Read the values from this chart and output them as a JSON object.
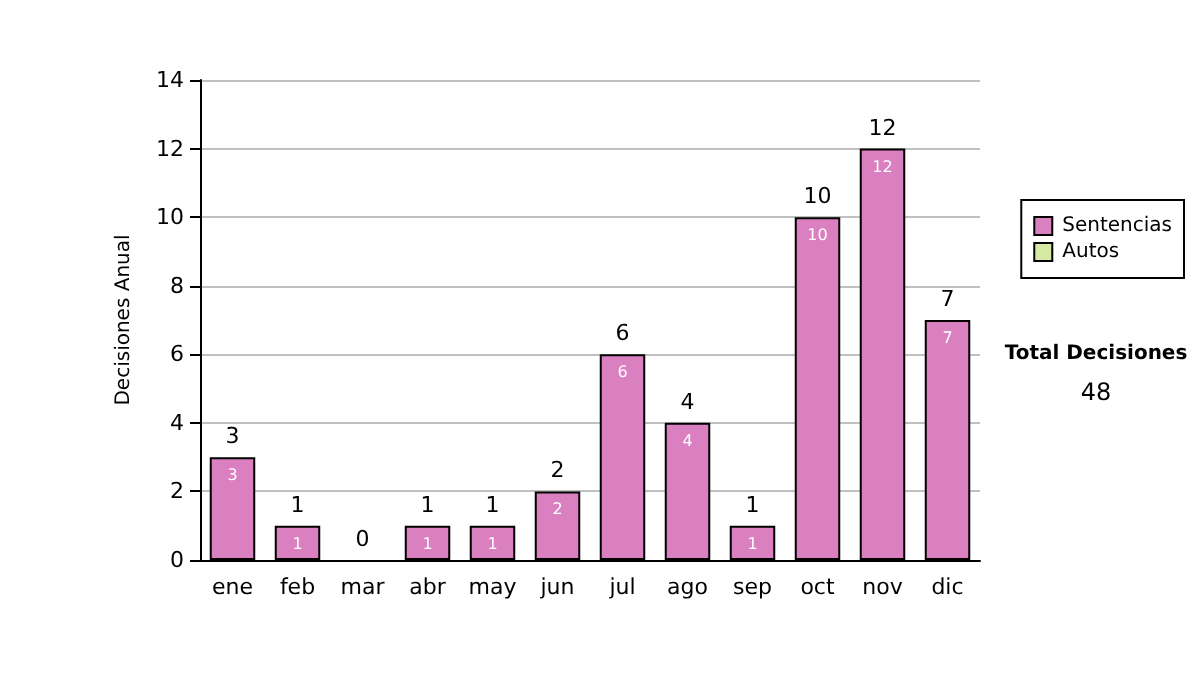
{
  "chart_data": {
    "type": "bar",
    "ylabel": "Decisiones Anual",
    "categories": [
      "ene",
      "feb",
      "mar",
      "abr",
      "may",
      "jun",
      "jul",
      "ago",
      "sep",
      "oct",
      "nov",
      "dic"
    ],
    "series": [
      {
        "name": "Sentencias",
        "color": "#da7fc0",
        "values": [
          3,
          1,
          0,
          1,
          1,
          2,
          6,
          4,
          1,
          10,
          12,
          7
        ],
        "value_labels": [
          "3",
          "1",
          null,
          "1",
          "1",
          "2",
          "6",
          "4",
          "1",
          "10",
          "12",
          "7"
        ]
      },
      {
        "name": "Autos",
        "color": "#d6eaa4",
        "values": [
          0,
          0,
          0,
          0,
          0,
          0,
          0,
          0,
          0,
          0,
          0,
          0
        ]
      }
    ],
    "stacked": true,
    "totals": [
      "3",
      "1",
      "0",
      "1",
      "1",
      "2",
      "6",
      "4",
      "1",
      "10",
      "12",
      "7"
    ],
    "ylim": [
      0,
      14
    ],
    "yticks": [
      0,
      2,
      4,
      6,
      8,
      10,
      12,
      14
    ],
    "grid": "y",
    "legend": "right",
    "annotations": [
      "Total Decisiones",
      "48"
    ]
  }
}
